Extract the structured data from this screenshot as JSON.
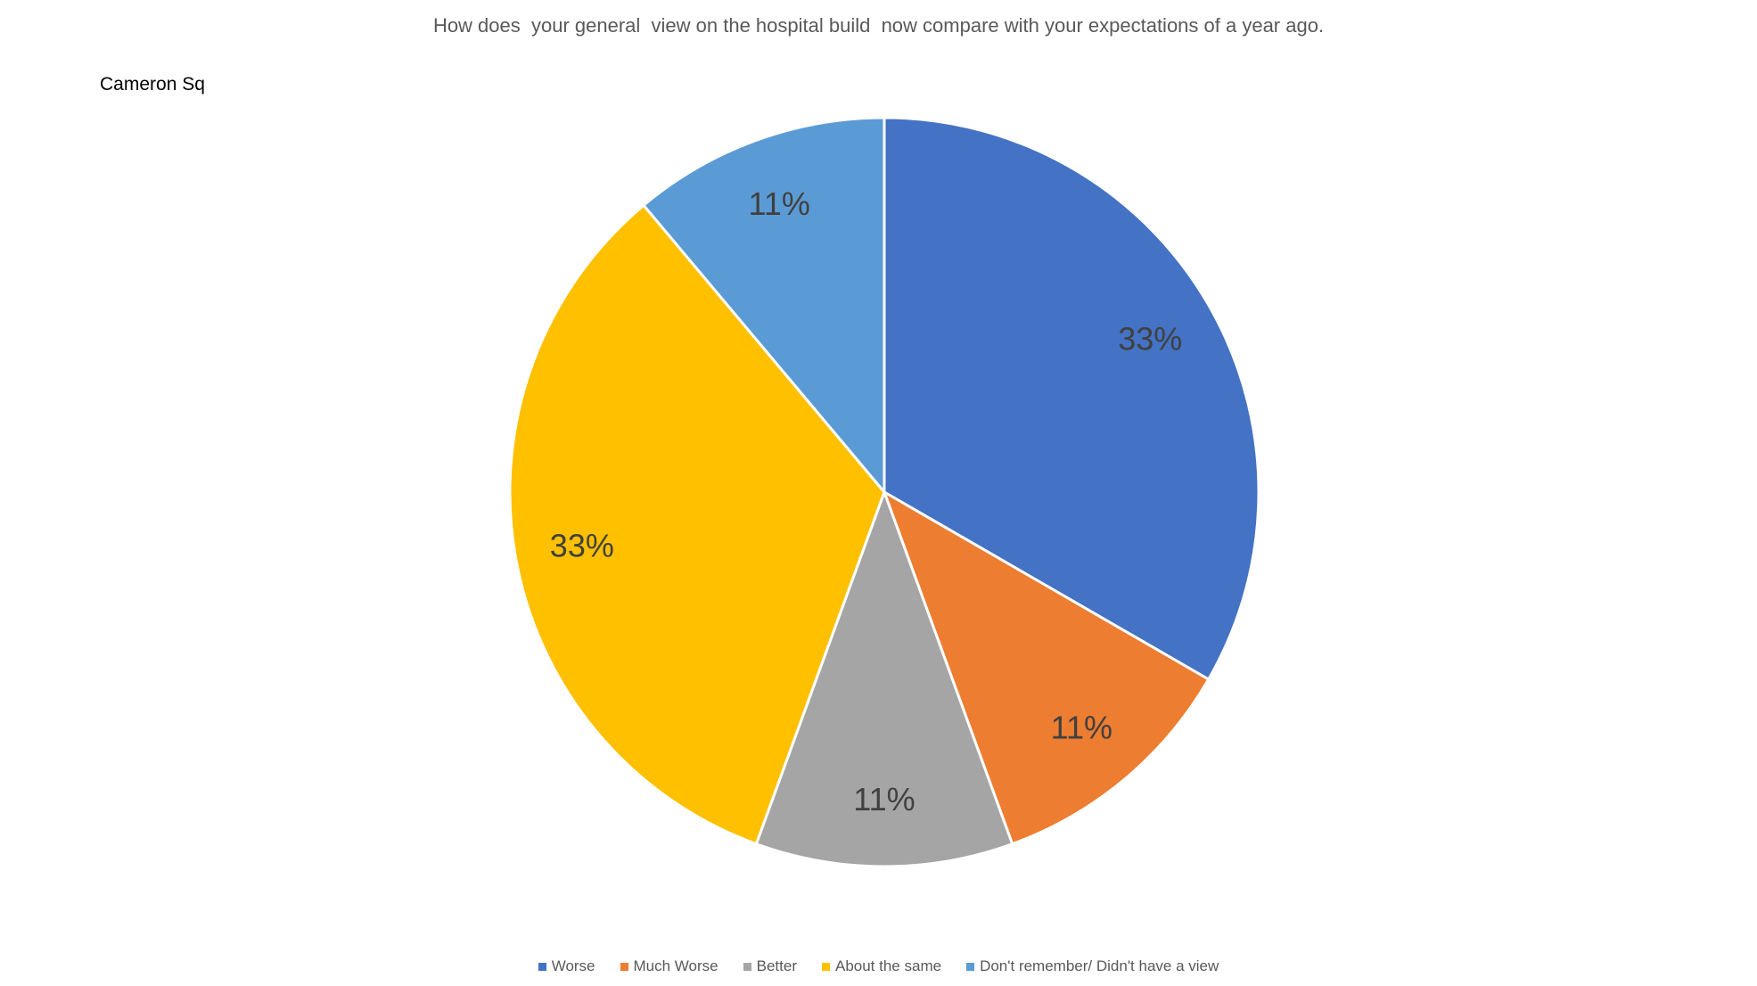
{
  "title": "How does  your general  view on the hospital build  now compare with your expectations of a year ago.",
  "panel_label": "Cameron Sq",
  "chart_data": {
    "type": "pie",
    "title": "How does  your general  view on the hospital build  now compare with your expectations of a year ago.",
    "categories": [
      "Worse",
      "Much Worse",
      "Better",
      "About the same",
      "Don't remember/ Didn't have a view"
    ],
    "values": [
      33,
      11,
      11,
      33,
      11
    ],
    "data_labels": [
      "33%",
      "11%",
      "11%",
      "33%",
      "11%"
    ],
    "colors": [
      "#4472C4",
      "#ED7D31",
      "#A5A5A5",
      "#FFC000",
      "#5B9BD5"
    ],
    "legend_position": "bottom",
    "start_angle": "12 o'clock",
    "direction": "clockwise"
  }
}
